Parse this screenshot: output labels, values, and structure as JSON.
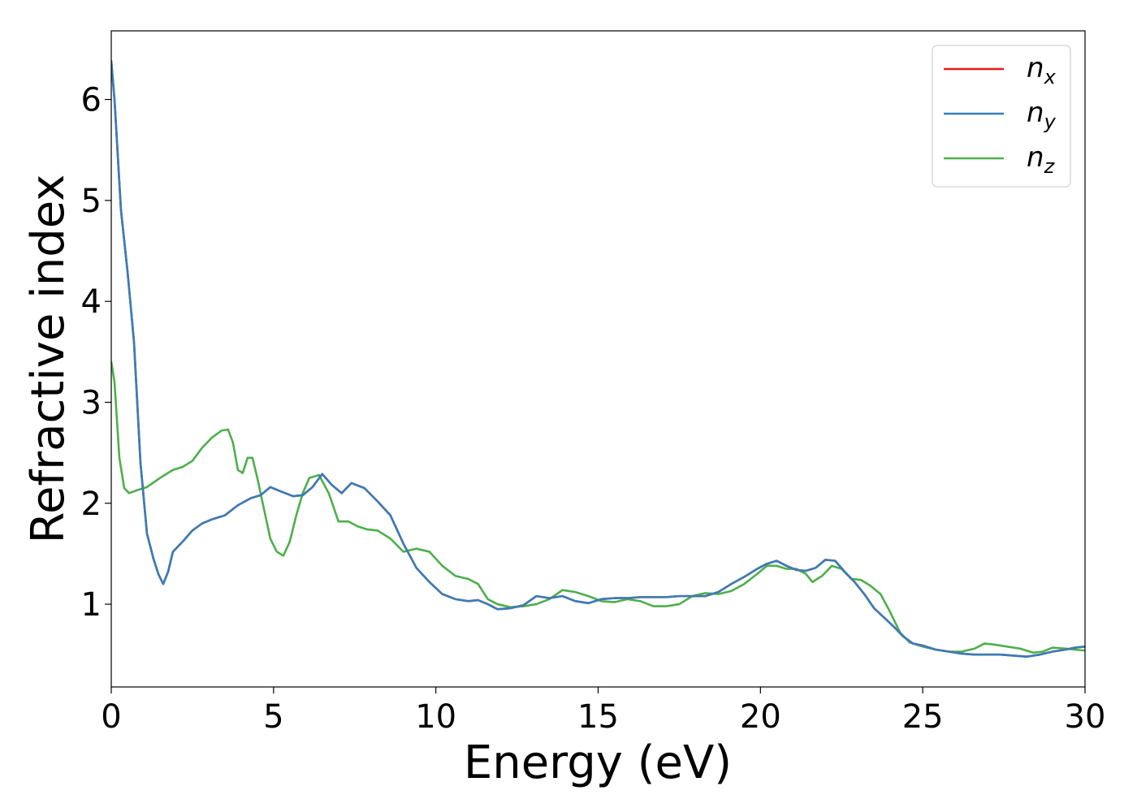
{
  "chart_data": {
    "type": "line",
    "xlabel": "Energy (eV)",
    "ylabel": "Refractive index",
    "xlim": [
      0,
      30
    ],
    "ylim": [
      0.18,
      6.68
    ],
    "xticks": [
      0,
      5,
      10,
      15,
      20,
      25,
      30
    ],
    "yticks": [
      1,
      2,
      3,
      4,
      5,
      6
    ],
    "grid": false,
    "legend_position": "top-right",
    "series": [
      {
        "name": "n_x",
        "label_base": "n",
        "label_sub": "x",
        "color": "#e41a1c",
        "x": [
          0,
          0.1,
          0.3,
          0.5,
          0.7,
          0.9,
          1.1,
          1.3,
          1.45,
          1.6,
          1.75,
          1.9,
          2.2,
          2.5,
          2.8,
          3.1,
          3.5,
          3.9,
          4.3,
          4.6,
          4.9,
          5.2,
          5.6,
          5.9,
          6.2,
          6.5,
          6.8,
          7.1,
          7.4,
          7.8,
          8.2,
          8.6,
          9.0,
          9.4,
          9.8,
          10.2,
          10.6,
          11.0,
          11.3,
          11.6,
          11.9,
          12.3,
          12.7,
          13.1,
          13.5,
          13.9,
          14.3,
          14.7,
          15.1,
          15.5,
          15.9,
          16.3,
          16.7,
          17.1,
          17.5,
          17.9,
          18.3,
          18.7,
          19.1,
          19.5,
          19.9,
          20.2,
          20.5,
          20.8,
          21.1,
          21.4,
          21.7,
          22.0,
          22.3,
          22.6,
          22.9,
          23.2,
          23.5,
          23.8,
          24.1,
          24.4,
          24.7,
          25.0,
          25.4,
          25.8,
          26.2,
          26.6,
          27.0,
          27.4,
          27.8,
          28.2,
          28.6,
          29.0,
          29.4,
          29.7,
          30.0
        ],
        "y": [
          6.38,
          6.0,
          4.9,
          4.3,
          3.6,
          2.4,
          1.7,
          1.45,
          1.3,
          1.2,
          1.32,
          1.52,
          1.62,
          1.73,
          1.8,
          1.84,
          1.88,
          1.98,
          2.05,
          2.08,
          2.16,
          2.12,
          2.07,
          2.08,
          2.16,
          2.29,
          2.18,
          2.1,
          2.2,
          2.15,
          2.02,
          1.88,
          1.6,
          1.36,
          1.22,
          1.1,
          1.05,
          1.03,
          1.04,
          1.0,
          0.95,
          0.96,
          0.99,
          1.08,
          1.06,
          1.08,
          1.03,
          1.01,
          1.05,
          1.06,
          1.06,
          1.07,
          1.07,
          1.07,
          1.08,
          1.08,
          1.08,
          1.12,
          1.2,
          1.27,
          1.35,
          1.4,
          1.43,
          1.38,
          1.34,
          1.33,
          1.36,
          1.44,
          1.43,
          1.32,
          1.22,
          1.1,
          0.96,
          0.87,
          0.78,
          0.68,
          0.61,
          0.59,
          0.55,
          0.53,
          0.51,
          0.5,
          0.5,
          0.5,
          0.49,
          0.48,
          0.5,
          0.53,
          0.55,
          0.57,
          0.58
        ]
      },
      {
        "name": "n_y",
        "label_base": "n",
        "label_sub": "y",
        "color": "#377eb8",
        "x": [
          0,
          0.1,
          0.3,
          0.5,
          0.7,
          0.9,
          1.1,
          1.3,
          1.45,
          1.6,
          1.75,
          1.9,
          2.2,
          2.5,
          2.8,
          3.1,
          3.5,
          3.9,
          4.3,
          4.6,
          4.9,
          5.2,
          5.6,
          5.9,
          6.2,
          6.5,
          6.8,
          7.1,
          7.4,
          7.8,
          8.2,
          8.6,
          9.0,
          9.4,
          9.8,
          10.2,
          10.6,
          11.0,
          11.3,
          11.6,
          11.9,
          12.3,
          12.7,
          13.1,
          13.5,
          13.9,
          14.3,
          14.7,
          15.1,
          15.5,
          15.9,
          16.3,
          16.7,
          17.1,
          17.5,
          17.9,
          18.3,
          18.7,
          19.1,
          19.5,
          19.9,
          20.2,
          20.5,
          20.8,
          21.1,
          21.4,
          21.7,
          22.0,
          22.3,
          22.6,
          22.9,
          23.2,
          23.5,
          23.8,
          24.1,
          24.4,
          24.7,
          25.0,
          25.4,
          25.8,
          26.2,
          26.6,
          27.0,
          27.4,
          27.8,
          28.2,
          28.6,
          29.0,
          29.4,
          29.7,
          30.0
        ],
        "y": [
          6.38,
          6.0,
          4.9,
          4.3,
          3.6,
          2.4,
          1.7,
          1.45,
          1.3,
          1.2,
          1.32,
          1.52,
          1.62,
          1.73,
          1.8,
          1.84,
          1.88,
          1.98,
          2.05,
          2.08,
          2.16,
          2.12,
          2.07,
          2.08,
          2.16,
          2.29,
          2.18,
          2.1,
          2.2,
          2.15,
          2.02,
          1.88,
          1.6,
          1.36,
          1.22,
          1.1,
          1.05,
          1.03,
          1.04,
          1.0,
          0.95,
          0.96,
          0.99,
          1.08,
          1.06,
          1.08,
          1.03,
          1.01,
          1.05,
          1.06,
          1.06,
          1.07,
          1.07,
          1.07,
          1.08,
          1.08,
          1.08,
          1.12,
          1.2,
          1.27,
          1.35,
          1.4,
          1.43,
          1.38,
          1.34,
          1.33,
          1.36,
          1.44,
          1.43,
          1.32,
          1.22,
          1.1,
          0.96,
          0.87,
          0.78,
          0.68,
          0.61,
          0.59,
          0.55,
          0.53,
          0.51,
          0.5,
          0.5,
          0.5,
          0.49,
          0.48,
          0.5,
          0.53,
          0.55,
          0.57,
          0.58
        ]
      },
      {
        "name": "n_z",
        "label_base": "n",
        "label_sub": "z",
        "color": "#4daf4a",
        "x": [
          0,
          0.1,
          0.25,
          0.4,
          0.55,
          0.8,
          1.1,
          1.5,
          1.9,
          2.2,
          2.5,
          2.8,
          3.1,
          3.4,
          3.6,
          3.75,
          3.9,
          4.05,
          4.2,
          4.35,
          4.5,
          4.7,
          4.9,
          5.1,
          5.3,
          5.5,
          5.7,
          5.9,
          6.1,
          6.4,
          6.7,
          7.0,
          7.3,
          7.6,
          7.9,
          8.2,
          8.6,
          9.0,
          9.4,
          9.8,
          10.2,
          10.6,
          11.0,
          11.3,
          11.6,
          11.9,
          12.3,
          12.7,
          13.1,
          13.5,
          13.9,
          14.3,
          14.7,
          15.1,
          15.5,
          15.9,
          16.3,
          16.7,
          17.1,
          17.5,
          17.9,
          18.3,
          18.7,
          19.1,
          19.5,
          19.9,
          20.2,
          20.5,
          20.8,
          21.1,
          21.4,
          21.6,
          21.9,
          22.2,
          22.5,
          22.8,
          23.1,
          23.4,
          23.7,
          24.0,
          24.3,
          24.6,
          25.0,
          25.4,
          25.8,
          26.2,
          26.6,
          26.9,
          27.2,
          27.6,
          28.0,
          28.4,
          28.7,
          29.0,
          29.4,
          29.7,
          30.0
        ],
        "y": [
          3.4,
          3.2,
          2.45,
          2.15,
          2.1,
          2.13,
          2.16,
          2.25,
          2.33,
          2.36,
          2.42,
          2.55,
          2.65,
          2.72,
          2.73,
          2.6,
          2.33,
          2.3,
          2.45,
          2.45,
          2.25,
          1.95,
          1.65,
          1.52,
          1.48,
          1.62,
          1.88,
          2.1,
          2.25,
          2.28,
          2.1,
          1.82,
          1.82,
          1.77,
          1.74,
          1.73,
          1.65,
          1.52,
          1.55,
          1.52,
          1.38,
          1.28,
          1.25,
          1.2,
          1.05,
          1.0,
          0.97,
          0.98,
          1.0,
          1.05,
          1.14,
          1.12,
          1.08,
          1.03,
          1.02,
          1.05,
          1.03,
          0.98,
          0.98,
          1.0,
          1.08,
          1.11,
          1.1,
          1.13,
          1.2,
          1.3,
          1.38,
          1.38,
          1.35,
          1.35,
          1.3,
          1.22,
          1.28,
          1.38,
          1.35,
          1.25,
          1.24,
          1.18,
          1.1,
          0.92,
          0.72,
          0.62,
          0.58,
          0.55,
          0.53,
          0.53,
          0.56,
          0.61,
          0.6,
          0.58,
          0.56,
          0.52,
          0.53,
          0.57,
          0.56,
          0.55,
          0.54
        ]
      }
    ]
  }
}
